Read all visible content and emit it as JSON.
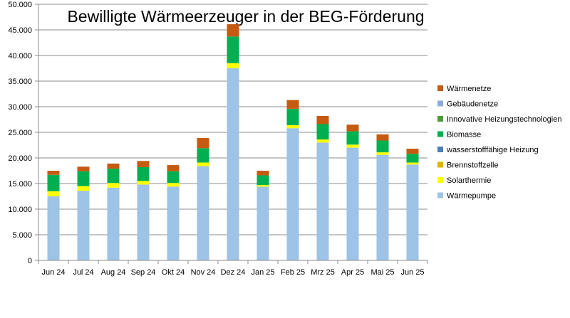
{
  "chart_data": {
    "type": "bar",
    "stacked": true,
    "title": "Bewilligte Wärmeerzeuger in der BEG-Förderung",
    "xlabel": "",
    "ylabel": "",
    "ylim": [
      0,
      50000
    ],
    "yticks": [
      "0",
      "5.000",
      "10.000",
      "15.000",
      "20.000",
      "25.000",
      "30.000",
      "35.000",
      "40.000",
      "45.000",
      "50.000"
    ],
    "grid": true,
    "legend_position": "right",
    "categories": [
      "Jun 24",
      "Jul 24",
      "Aug 24",
      "Sep 24",
      "Okt 24",
      "Nov 24",
      "Dez 24",
      "Jan 25",
      "Feb 25",
      "Mrz 25",
      "Apr 25",
      "Mai 25",
      "Jun 25"
    ],
    "series": [
      {
        "name": "Wärmepumpe",
        "color": "#9dc3e6",
        "values": [
          12500,
          13600,
          14200,
          14800,
          14400,
          18400,
          37500,
          14400,
          25800,
          23000,
          22000,
          20600,
          18700
        ]
      },
      {
        "name": "Solarthermie",
        "color": "#ffff00",
        "values": [
          1000,
          900,
          900,
          700,
          700,
          700,
          1000,
          300,
          600,
          600,
          600,
          500,
          400
        ]
      },
      {
        "name": "Brennstoffzelle",
        "color": "#e0b000",
        "values": [
          0,
          0,
          0,
          0,
          0,
          0,
          0,
          0,
          0,
          0,
          0,
          0,
          0
        ]
      },
      {
        "name": "wasserstofffähige Heizung",
        "color": "#4a7ebb",
        "values": [
          0,
          0,
          0,
          0,
          0,
          0,
          0,
          0,
          0,
          0,
          0,
          0,
          0
        ]
      },
      {
        "name": "Biomasse",
        "color": "#00b050",
        "values": [
          3200,
          2900,
          2800,
          2700,
          2300,
          2800,
          5200,
          1900,
          3200,
          3000,
          2600,
          2300,
          1700
        ]
      },
      {
        "name": "Innovative Heizungstechnologien",
        "color": "#4e9a3a",
        "values": [
          0,
          0,
          0,
          0,
          0,
          0,
          0,
          0,
          0,
          0,
          0,
          0,
          0
        ]
      },
      {
        "name": "Gebäudenetze",
        "color": "#8faadc",
        "values": [
          0,
          0,
          0,
          0,
          0,
          0,
          0,
          0,
          0,
          0,
          0,
          0,
          0
        ]
      },
      {
        "name": "Wärmenetze",
        "color": "#c55a11",
        "values": [
          800,
          900,
          1000,
          1200,
          1200,
          2000,
          2400,
          900,
          1700,
          1600,
          1300,
          1200,
          1000
        ]
      }
    ]
  }
}
